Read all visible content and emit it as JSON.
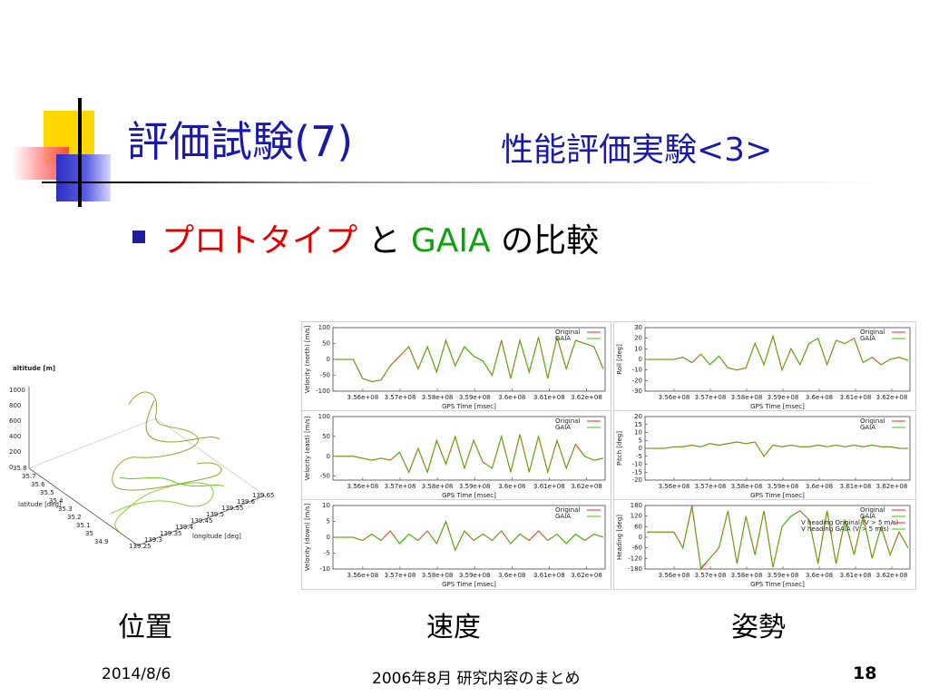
{
  "slide": {
    "title_main": "評価試験(7)",
    "title_sub": "性能評価実験<3>",
    "bullet": {
      "part1": "プロトタイプ",
      "part2": " と ",
      "part3": "GAIA",
      "part4": " の比較"
    },
    "captions": [
      "位置",
      "速度",
      "姿勢"
    ],
    "footer": {
      "date": "2014/8/6",
      "center": "2006年8月 研究内容のまとめ",
      "page": "18"
    },
    "colors": {
      "title": "#1a1aa6",
      "highlight_red": "#e00000",
      "highlight_green": "#10a010",
      "original_series": "#ff2020",
      "gaia_series": "#33cc00"
    }
  },
  "chart_data": [
    {
      "type": "line",
      "panel": "position-3d",
      "zlabel": "altitude [m]",
      "ylabel": "latitude [deg]",
      "xlabel": "longitude [deg]",
      "zticks": [
        "1000",
        "800",
        "600",
        "400",
        "200",
        "0"
      ],
      "yticks": [
        "35.8",
        "35.7",
        "35.6",
        "35.5",
        "35.4",
        "35.3",
        "35.2",
        "35.1",
        "35",
        "34.9"
      ],
      "xticks": [
        "139.25",
        "139.3",
        "139.35",
        "139.4",
        "139.45",
        "139.5",
        "139.55",
        "139.6",
        "139.65"
      ],
      "series": []
    },
    {
      "type": "line",
      "panel": "velocity-north",
      "ylabel": "Velocity (north) [m/s]",
      "xlabel": "GPS Time [msec]",
      "xticks": [
        "3.56e+08",
        "3.57e+08",
        "3.58e+08",
        "3.59e+08",
        "3.6e+08",
        "3.61e+08",
        "3.62e+08"
      ],
      "yticks": [
        "100",
        "50",
        "0",
        "-50",
        "-100"
      ],
      "ylim": [
        -100,
        100
      ],
      "xlim": [
        355000000.0,
        362500000.0
      ],
      "series": [
        {
          "name": "Original",
          "values": [
            0,
            0,
            0,
            -60,
            -70,
            -65,
            -20,
            10,
            40,
            -30,
            40,
            -40,
            60,
            -20,
            40,
            10,
            -5,
            -50,
            60,
            -60,
            60,
            -40,
            70,
            -60,
            70,
            -30,
            60,
            50,
            40,
            -30
          ]
        },
        {
          "name": "GAIA",
          "values": [
            0,
            0,
            0,
            -60,
            -70,
            -65,
            -20,
            10,
            40,
            -30,
            40,
            -40,
            60,
            -20,
            40,
            10,
            -5,
            -50,
            60,
            -60,
            60,
            -40,
            70,
            -60,
            70,
            -30,
            60,
            50,
            40,
            -30
          ]
        }
      ]
    },
    {
      "type": "line",
      "panel": "velocity-east",
      "ylabel": "Velocity (east) [m/s]",
      "xlabel": "GPS Time [msec]",
      "xticks": [
        "3.56e+08",
        "3.57e+08",
        "3.58e+08",
        "3.59e+08",
        "3.6e+08",
        "3.61e+08",
        "3.62e+08"
      ],
      "yticks": [
        "100",
        "50",
        "0",
        "-50"
      ],
      "ylim": [
        -60,
        100
      ],
      "xlim": [
        355000000.0,
        362500000.0
      ],
      "series": [
        {
          "name": "Original",
          "values": [
            0,
            0,
            0,
            -5,
            -10,
            -5,
            -10,
            10,
            -40,
            20,
            -40,
            40,
            -20,
            50,
            -30,
            40,
            -15,
            -30,
            50,
            -40,
            55,
            -40,
            50,
            -40,
            40,
            -30,
            30,
            0,
            -10,
            -5
          ]
        },
        {
          "name": "GAIA",
          "values": [
            0,
            0,
            0,
            -5,
            -10,
            -5,
            -10,
            10,
            -40,
            20,
            -40,
            40,
            -20,
            50,
            -30,
            40,
            -15,
            -30,
            50,
            -40,
            55,
            -40,
            50,
            -40,
            40,
            -30,
            30,
            0,
            -10,
            -5
          ]
        }
      ]
    },
    {
      "type": "line",
      "panel": "velocity-down",
      "ylabel": "Velocity (down) [m/s]",
      "xlabel": "GPS Time [msec]",
      "xticks": [
        "3.56e+08",
        "3.57e+08",
        "3.58e+08",
        "3.59e+08",
        "3.6e+08",
        "3.61e+08",
        "3.62e+08"
      ],
      "yticks": [
        "10",
        "5",
        "0",
        "-5",
        "-10"
      ],
      "ylim": [
        -10,
        10
      ],
      "xlim": [
        355000000.0,
        362500000.0
      ],
      "series": [
        {
          "name": "Original",
          "values": [
            0,
            0,
            0,
            -1,
            1,
            -1,
            2,
            -2,
            1,
            -1,
            2,
            -2,
            5,
            -4,
            2,
            -1,
            1,
            -1,
            2,
            -2,
            1,
            -1,
            2,
            -1,
            1,
            -2,
            1,
            -1,
            1,
            0
          ]
        },
        {
          "name": "GAIA",
          "values": [
            0,
            0,
            0,
            -1,
            1,
            -1,
            2,
            -2,
            1,
            -1,
            2,
            -2,
            5,
            -4,
            2,
            -1,
            1,
            -1,
            2,
            -2,
            1,
            -1,
            2,
            -1,
            1,
            -2,
            1,
            -1,
            1,
            0
          ]
        }
      ]
    },
    {
      "type": "line",
      "panel": "roll",
      "ylabel": "Roll [deg]",
      "xlabel": "GPS Time [msec]",
      "xticks": [
        "3.56e+08",
        "3.57e+08",
        "3.58e+08",
        "3.59e+08",
        "3.6e+08",
        "3.61e+08",
        "3.62e+08"
      ],
      "yticks": [
        "30",
        "20",
        "10",
        "0",
        "-10",
        "-20",
        "-30"
      ],
      "ylim": [
        -30,
        30
      ],
      "xlim": [
        355000000.0,
        362500000.0
      ],
      "series": [
        {
          "name": "Original",
          "values": [
            0,
            0,
            0,
            0,
            2,
            -3,
            5,
            -5,
            3,
            -8,
            -10,
            -8,
            15,
            -5,
            22,
            -10,
            10,
            -5,
            15,
            20,
            -5,
            18,
            15,
            20,
            -3,
            2,
            -5,
            0,
            2,
            -1
          ]
        },
        {
          "name": "GAIA",
          "values": [
            0,
            0,
            0,
            0,
            2,
            -3,
            5,
            -5,
            3,
            -8,
            -10,
            -8,
            15,
            -5,
            22,
            -10,
            10,
            -5,
            15,
            20,
            -5,
            18,
            15,
            20,
            -3,
            2,
            -5,
            0,
            2,
            -1
          ]
        }
      ]
    },
    {
      "type": "line",
      "panel": "pitch",
      "ylabel": "Pitch [deg]",
      "xlabel": "GPS Time [msec]",
      "xticks": [
        "3.56e+08",
        "3.57e+08",
        "3.58e+08",
        "3.59e+08",
        "3.6e+08",
        "3.61e+08",
        "3.62e+08"
      ],
      "yticks": [
        "20",
        "15",
        "10",
        "5",
        "0",
        "-5",
        "-10",
        "-15",
        "-20"
      ],
      "ylim": [
        -20,
        20
      ],
      "xlim": [
        355000000.0,
        362500000.0
      ],
      "series": [
        {
          "name": "Original",
          "values": [
            0,
            0,
            0,
            1,
            1,
            2,
            1,
            3,
            2,
            3,
            4,
            3,
            4,
            -5,
            2,
            1,
            2,
            1,
            1,
            2,
            1,
            2,
            1,
            2,
            1,
            2,
            1,
            1,
            0,
            0
          ]
        },
        {
          "name": "GAIA",
          "values": [
            0,
            0,
            0,
            1,
            1,
            2,
            1,
            3,
            2,
            3,
            4,
            3,
            4,
            -5,
            2,
            1,
            2,
            1,
            1,
            2,
            1,
            2,
            1,
            2,
            1,
            2,
            1,
            1,
            0,
            0
          ]
        }
      ]
    },
    {
      "type": "line",
      "panel": "heading",
      "ylabel": "Heading [deg]",
      "xlabel": "GPS Time [msec]",
      "xticks": [
        "3.56e+08",
        "3.57e+08",
        "3.58e+08",
        "3.59e+08",
        "3.6e+08",
        "3.61e+08",
        "3.62e+08"
      ],
      "yticks": [
        "180",
        "120",
        "60",
        "0",
        "-60",
        "-120",
        "-180"
      ],
      "ylim": [
        -180,
        180
      ],
      "xlim": [
        355000000.0,
        362500000.0
      ],
      "legend": [
        "Original",
        "GAIA",
        "V heading Original (V > 5 m/s)",
        "V heading GAIA (V > 5 m/s)"
      ],
      "series": [
        {
          "name": "Original",
          "values": [
            30,
            30,
            30,
            30,
            -60,
            180,
            -180,
            -120,
            -60,
            150,
            -150,
            120,
            -100,
            150,
            -170,
            60,
            120,
            150,
            100,
            -150,
            150,
            -150,
            100,
            -100,
            120,
            -120,
            60,
            -100,
            30,
            -60
          ]
        },
        {
          "name": "GAIA",
          "values": [
            30,
            30,
            30,
            30,
            -60,
            170,
            -170,
            -120,
            -60,
            150,
            -150,
            120,
            -100,
            150,
            -170,
            60,
            120,
            150,
            100,
            -150,
            150,
            -150,
            100,
            -100,
            120,
            -120,
            60,
            -100,
            30,
            -60
          ]
        }
      ]
    }
  ]
}
